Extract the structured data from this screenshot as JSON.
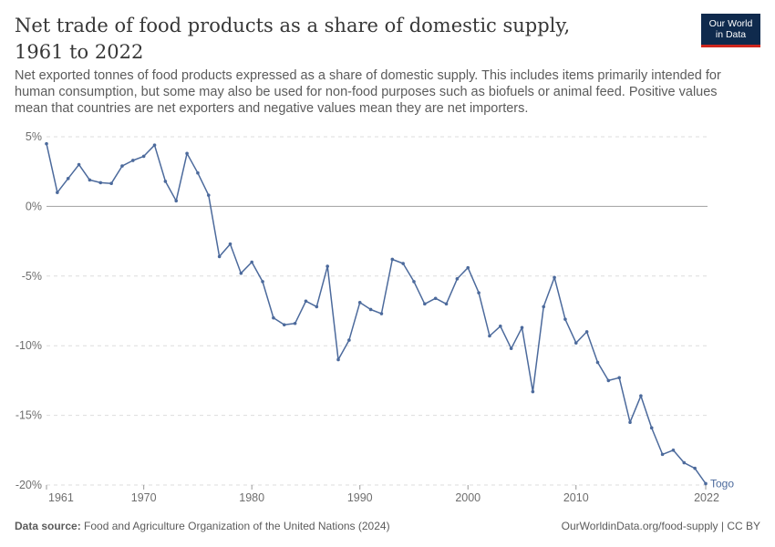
{
  "header": {
    "title": "Net trade of food products as a share of domestic supply, 1961 to 2022",
    "subtitle": "Net exported tonnes of food products expressed as a share of domestic supply. This includes items primarily intended for human consumption, but some may also be used for non-food purposes such as biofuels or animal feed. Positive values mean that countries are net exporters and negative values mean they are net importers."
  },
  "logo": {
    "line1": "Our World",
    "line2": "in Data"
  },
  "footer": {
    "source_label": "Data source:",
    "source_text": "Food and Agriculture Organization of the United Nations (2024)",
    "right_text": "OurWorldinData.org/food-supply | CC BY"
  },
  "colors": {
    "series": "#4c6a9c",
    "grid": "#dddddd",
    "zero_line": "#a1a1a1"
  },
  "chart_data": {
    "type": "line",
    "title": "Net trade of food products as a share of domestic supply, 1961 to 2022",
    "ylim": [
      -20,
      5
    ],
    "xlim": [
      1961,
      2022
    ],
    "y_ticks": [
      5,
      0,
      -5,
      -10,
      -15,
      -20
    ],
    "y_tick_labels": [
      "5%",
      "0%",
      "-5%",
      "-10%",
      "-15%",
      "-20%"
    ],
    "x_ticks": [
      1961,
      1970,
      1980,
      1990,
      2000,
      2010,
      2022
    ],
    "x_tick_labels": [
      "1961",
      "1970",
      "1980",
      "1990",
      "2000",
      "2010",
      "2022"
    ],
    "grid": true,
    "series": [
      {
        "name": "Togo",
        "x": [
          1961,
          1962,
          1963,
          1964,
          1965,
          1966,
          1967,
          1968,
          1969,
          1970,
          1971,
          1972,
          1973,
          1974,
          1975,
          1976,
          1977,
          1978,
          1979,
          1980,
          1981,
          1982,
          1983,
          1984,
          1985,
          1986,
          1987,
          1988,
          1989,
          1990,
          1991,
          1992,
          1993,
          1994,
          1995,
          1996,
          1997,
          1998,
          1999,
          2000,
          2001,
          2002,
          2003,
          2004,
          2005,
          2006,
          2007,
          2008,
          2009,
          2010,
          2011,
          2012,
          2013,
          2014,
          2015,
          2016,
          2017,
          2018,
          2019,
          2020,
          2021,
          2022
        ],
        "values": [
          4.5,
          1.0,
          2.0,
          3.0,
          1.9,
          1.7,
          1.65,
          2.9,
          3.3,
          3.6,
          4.4,
          1.8,
          0.4,
          3.8,
          2.4,
          0.8,
          -3.6,
          -2.7,
          -4.8,
          -4.0,
          -5.4,
          -8.0,
          -8.5,
          -8.4,
          -6.8,
          -7.2,
          -4.3,
          -11.0,
          -9.6,
          -6.9,
          -7.4,
          -7.7,
          -3.8,
          -4.1,
          -5.4,
          -7.0,
          -6.6,
          -7.0,
          -5.2,
          -4.4,
          -6.2,
          -9.3,
          -8.6,
          -10.2,
          -8.7,
          -13.3,
          -7.2,
          -5.1,
          -8.1,
          -9.8,
          -9.0,
          -11.2,
          -12.5,
          -12.3,
          -15.5,
          -13.6,
          -15.9,
          -17.8,
          -17.5,
          -18.4,
          -18.8,
          -19.9
        ]
      }
    ]
  }
}
